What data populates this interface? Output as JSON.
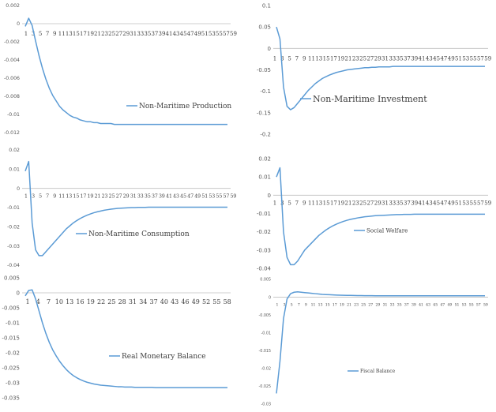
{
  "colors": {
    "series": "#5b9bd5",
    "axis": "#bfbfbf",
    "text": "#595959",
    "background": "#ffffff"
  },
  "chart_data": [
    {
      "type": "line",
      "series": [
        {
          "name": "Non-Maritime Production",
          "values": [
            -0.0003,
            0.0006,
            -0.0002,
            -0.0019,
            -0.0035,
            -0.0049,
            -0.0061,
            -0.0071,
            -0.0079,
            -0.0085,
            -0.0091,
            -0.0095,
            -0.0098,
            -0.0101,
            -0.0103,
            -0.0104,
            -0.0106,
            -0.0107,
            -0.0108,
            -0.0108,
            -0.0109,
            -0.0109,
            -0.011,
            -0.011,
            -0.011,
            -0.011,
            -0.0111,
            -0.0111,
            -0.0111,
            -0.0111,
            -0.0111,
            -0.0111,
            -0.0111,
            -0.0111,
            -0.0111,
            -0.0111,
            -0.0111,
            -0.0111,
            -0.0111,
            -0.0111,
            -0.0111,
            -0.0111,
            -0.0111,
            -0.0111,
            -0.0111,
            -0.0111,
            -0.0111,
            -0.0111,
            -0.0111,
            -0.0111,
            -0.0111,
            -0.0111,
            -0.0111,
            -0.0111,
            -0.0111,
            -0.0111,
            -0.0111,
            -0.0111,
            -0.0111,
            -0.0111
          ]
        }
      ],
      "yticks": [
        "0.002",
        "0",
        "-0.002",
        "-0.004",
        "-0.006",
        "-0.008",
        "-0.01",
        "-0.012"
      ],
      "xticks": [
        "1",
        "3",
        "5",
        "7",
        "9",
        "11",
        "13",
        "15",
        "17",
        "19",
        "21",
        "23",
        "25",
        "27",
        "29",
        "31",
        "33",
        "35",
        "37",
        "39",
        "41",
        "43",
        "45",
        "47",
        "49",
        "51",
        "53",
        "55",
        "57",
        "59"
      ],
      "ylim": [
        -0.012,
        0.002
      ]
    },
    {
      "type": "line",
      "series": [
        {
          "name": "Non-Maritime Investment",
          "values": [
            0.05,
            0.022,
            -0.09,
            -0.135,
            -0.143,
            -0.138,
            -0.128,
            -0.118,
            -0.108,
            -0.098,
            -0.09,
            -0.082,
            -0.076,
            -0.07,
            -0.066,
            -0.062,
            -0.059,
            -0.056,
            -0.054,
            -0.052,
            -0.05,
            -0.049,
            -0.048,
            -0.047,
            -0.046,
            -0.045,
            -0.045,
            -0.044,
            -0.044,
            -0.043,
            -0.043,
            -0.043,
            -0.043,
            -0.042,
            -0.042,
            -0.042,
            -0.042,
            -0.042,
            -0.042,
            -0.042,
            -0.042,
            -0.042,
            -0.042,
            -0.042,
            -0.042,
            -0.042,
            -0.042,
            -0.042,
            -0.042,
            -0.042,
            -0.042,
            -0.042,
            -0.042,
            -0.042,
            -0.042,
            -0.042,
            -0.042,
            -0.042,
            -0.042,
            -0.042
          ]
        }
      ],
      "yticks": [
        "0.1",
        "0.05",
        "0",
        "-0.05",
        "-0.1",
        "-0.15",
        "-0.2"
      ],
      "xticks": [
        "1",
        "3",
        "5",
        "7",
        "9",
        "11",
        "13",
        "15",
        "17",
        "19",
        "21",
        "23",
        "25",
        "27",
        "29",
        "31",
        "33",
        "35",
        "37",
        "39",
        "41",
        "43",
        "45",
        "47",
        "49",
        "51",
        "53",
        "55",
        "57",
        "59"
      ],
      "ylim": [
        -0.2,
        0.1
      ]
    },
    {
      "type": "line",
      "series": [
        {
          "name": "Non-Maritime Consumption",
          "values": [
            0.009,
            0.014,
            -0.018,
            -0.032,
            -0.035,
            -0.035,
            -0.033,
            -0.031,
            -0.029,
            -0.027,
            -0.025,
            -0.023,
            -0.021,
            -0.0195,
            -0.018,
            -0.0168,
            -0.0157,
            -0.0148,
            -0.014,
            -0.0133,
            -0.0127,
            -0.0122,
            -0.0118,
            -0.0114,
            -0.0111,
            -0.0108,
            -0.0106,
            -0.0104,
            -0.0103,
            -0.0102,
            -0.0101,
            -0.01,
            -0.01,
            -0.0099,
            -0.0099,
            -0.0099,
            -0.0098,
            -0.0098,
            -0.0098,
            -0.0098,
            -0.0098,
            -0.0098,
            -0.0098,
            -0.0098,
            -0.0098,
            -0.0098,
            -0.0098,
            -0.0098,
            -0.0098,
            -0.0098,
            -0.0098,
            -0.0098,
            -0.0098,
            -0.0098,
            -0.0098,
            -0.0098,
            -0.0098,
            -0.0098,
            -0.0098,
            -0.0098
          ]
        }
      ],
      "yticks": [
        "0.02",
        "0.01",
        "0",
        "-0.01",
        "-0.02",
        "-0.03",
        "-0.04"
      ],
      "xticks": [
        "1",
        "3",
        "5",
        "7",
        "9",
        "11",
        "13",
        "15",
        "17",
        "19",
        "21",
        "23",
        "25",
        "27",
        "29",
        "31",
        "33",
        "35",
        "37",
        "39",
        "41",
        "43",
        "45",
        "47",
        "49",
        "51",
        "53",
        "55",
        "57",
        "59"
      ],
      "ylim": [
        -0.04,
        0.02
      ]
    },
    {
      "type": "line",
      "series": [
        {
          "name": "Social Welfare",
          "values": [
            0.01,
            0.015,
            -0.02,
            -0.034,
            -0.038,
            -0.038,
            -0.036,
            -0.033,
            -0.03,
            -0.028,
            -0.026,
            -0.024,
            -0.022,
            -0.0205,
            -0.019,
            -0.0178,
            -0.0167,
            -0.0158,
            -0.015,
            -0.0143,
            -0.0137,
            -0.0132,
            -0.0128,
            -0.0124,
            -0.0121,
            -0.0118,
            -0.0116,
            -0.0114,
            -0.0112,
            -0.0111,
            -0.011,
            -0.0109,
            -0.0108,
            -0.0107,
            -0.0106,
            -0.0106,
            -0.0105,
            -0.0105,
            -0.0105,
            -0.0104,
            -0.0104,
            -0.0104,
            -0.0104,
            -0.0104,
            -0.0104,
            -0.0104,
            -0.0104,
            -0.0104,
            -0.0104,
            -0.0104,
            -0.0104,
            -0.0104,
            -0.0104,
            -0.0104,
            -0.0104,
            -0.0104,
            -0.0104,
            -0.0104,
            -0.0104,
            -0.0104
          ]
        }
      ],
      "yticks": [
        "0.02",
        "0.01",
        "0",
        "-0.01",
        "-0.02",
        "-0.03",
        "-0.04"
      ],
      "xticks": [
        "1",
        "3",
        "5",
        "7",
        "9",
        "11",
        "13",
        "15",
        "17",
        "19",
        "21",
        "23",
        "25",
        "27",
        "29",
        "31",
        "33",
        "35",
        "37",
        "39",
        "41",
        "43",
        "45",
        "47",
        "49",
        "51",
        "53",
        "55",
        "57",
        "59"
      ],
      "ylim": [
        -0.04,
        0.02
      ]
    },
    {
      "type": "line",
      "series": [
        {
          "name": "Real Monetary Balance",
          "values": [
            -0.001,
            0.0008,
            0.001,
            -0.002,
            -0.006,
            -0.01,
            -0.0135,
            -0.0165,
            -0.019,
            -0.021,
            -0.0228,
            -0.0243,
            -0.0256,
            -0.0267,
            -0.0276,
            -0.0283,
            -0.0289,
            -0.0294,
            -0.0298,
            -0.0301,
            -0.0304,
            -0.0306,
            -0.0308,
            -0.0309,
            -0.031,
            -0.0311,
            -0.0312,
            -0.0313,
            -0.0313,
            -0.0314,
            -0.0314,
            -0.0314,
            -0.0315,
            -0.0315,
            -0.0315,
            -0.0315,
            -0.0315,
            -0.0315,
            -0.0316,
            -0.0316,
            -0.0316,
            -0.0316,
            -0.0316,
            -0.0316,
            -0.0316,
            -0.0316,
            -0.0316,
            -0.0316,
            -0.0316,
            -0.0316,
            -0.0316,
            -0.0316,
            -0.0316,
            -0.0316,
            -0.0316,
            -0.0316,
            -0.0316,
            -0.0316,
            -0.0316,
            -0.0316
          ]
        }
      ],
      "yticks": [
        "0.005",
        "0",
        "-0.005",
        "-0.01",
        "-0.015",
        "-0.02",
        "-0.025",
        "-0.03",
        "-0.035"
      ],
      "xticks": [
        "1",
        "4",
        "7",
        "10",
        "13",
        "16",
        "19",
        "22",
        "25",
        "28",
        "31",
        "34",
        "37",
        "40",
        "43",
        "46",
        "49",
        "52",
        "55",
        "58"
      ],
      "ylim": [
        -0.035,
        0.005
      ]
    },
    {
      "type": "line",
      "series": [
        {
          "name": "Fiscal Balance",
          "values": [
            -0.027,
            -0.018,
            -0.006,
            -0.0005,
            0.001,
            0.0014,
            0.0015,
            0.0014,
            0.0013,
            0.0012,
            0.0011,
            0.001,
            0.0009,
            0.0008,
            0.00075,
            0.0007,
            0.00065,
            0.0006,
            0.00057,
            0.00054,
            0.00052,
            0.0005,
            0.00048,
            0.00046,
            0.00045,
            0.00044,
            0.00043,
            0.00042,
            0.00041,
            0.0004,
            0.0004,
            0.0004,
            0.0004,
            0.0004,
            0.0004,
            0.0004,
            0.0004,
            0.0004,
            0.0004,
            0.0004,
            0.0004,
            0.0004,
            0.0004,
            0.0004,
            0.0004,
            0.0004,
            0.0004,
            0.0004,
            0.0004,
            0.0004,
            0.0004,
            0.0004,
            0.0004,
            0.0004,
            0.0004,
            0.0004,
            0.0004,
            0.0004,
            0.0004,
            0.0004
          ]
        }
      ],
      "yticks": [
        "0.005",
        "0",
        "-0.005",
        "-0.01",
        "-0.015",
        "-0.02",
        "-0.025",
        "-0.03"
      ],
      "xticks": [
        "1",
        "3",
        "5",
        "7",
        "9",
        "11",
        "13",
        "15",
        "17",
        "19",
        "21",
        "23",
        "25",
        "27",
        "29",
        "31",
        "33",
        "35",
        "37",
        "39",
        "41",
        "43",
        "45",
        "47",
        "49",
        "51",
        "53",
        "55",
        "57",
        "59"
      ],
      "ylim": [
        -0.03,
        0.005
      ]
    }
  ]
}
